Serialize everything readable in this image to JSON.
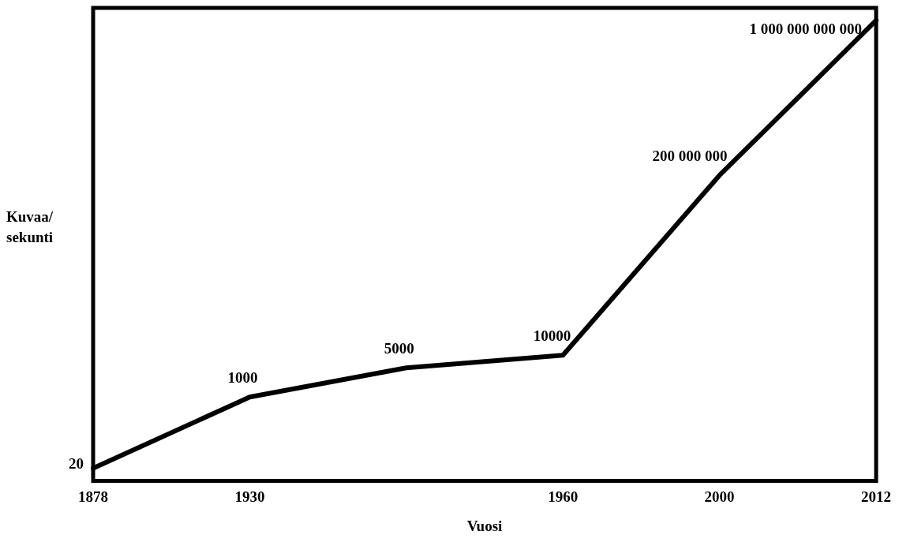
{
  "chart_data": {
    "type": "line",
    "xlabel": "Vuosi",
    "ylabel": "Kuvaa/ sekunti",
    "categories": [
      "1878",
      "1930",
      null,
      "1960",
      "2000",
      "2012"
    ],
    "series": [
      {
        "color": "#000000",
        "values": [
          20,
          1000,
          5000,
          10000,
          200000000,
          1000000000000
        ],
        "value_labels": [
          "20",
          "1000",
          "5000",
          "10000",
          "200 000 000",
          "1 000 000 000 000"
        ]
      }
    ],
    "log": true,
    "ylim": [
      10,
      2000000000000
    ],
    "grid": false,
    "legend": false,
    "tick_labels": "x",
    "marker": "none",
    "line_style": "solid"
  }
}
